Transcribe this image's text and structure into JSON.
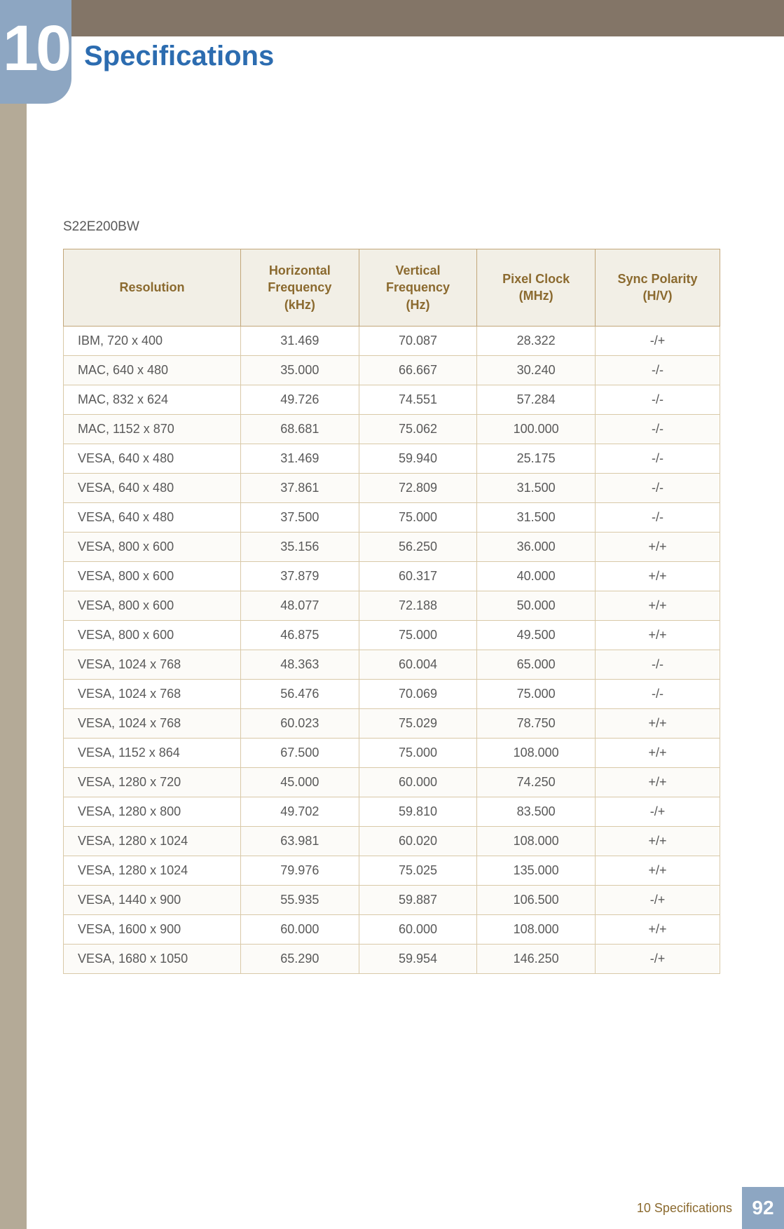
{
  "chapter_number": "10",
  "page_title": "Specifications",
  "model": "S22E200BW",
  "footer_label": "10 Specifications",
  "page_number": "92",
  "colors": {
    "sidebar": "#b4aa97",
    "topbar": "#837567",
    "badge": "#8da6c2",
    "title": "#2c6cb0",
    "header_bg": "#f2efe6",
    "header_text": "#8b6a2f",
    "table_border": "#c2a679",
    "cell_border": "#d9c9a8",
    "body_text": "#595959",
    "footer_page_bg": "#8da6c2"
  },
  "table": {
    "columns": [
      "Resolution",
      "Horizontal Frequency (kHz)",
      "Vertical Frequency (Hz)",
      "Pixel Clock (MHz)",
      "Sync Polarity (H/V)"
    ],
    "column_widths": [
      "27%",
      "18%",
      "18%",
      "18%",
      "19%"
    ],
    "header_html": [
      "Resolution",
      "Horizontal<br>Frequency<br>(kHz)",
      "Vertical<br>Frequency<br>(Hz)",
      "Pixel Clock<br>(MHz)",
      "Sync Polarity<br>(H/V)"
    ],
    "rows": [
      [
        "IBM, 720 x 400",
        "31.469",
        "70.087",
        "28.322",
        "-/+"
      ],
      [
        "MAC, 640 x 480",
        "35.000",
        "66.667",
        "30.240",
        "-/-"
      ],
      [
        "MAC, 832 x 624",
        "49.726",
        "74.551",
        "57.284",
        "-/-"
      ],
      [
        "MAC, 1152 x 870",
        "68.681",
        "75.062",
        "100.000",
        "-/-"
      ],
      [
        "VESA, 640 x 480",
        "31.469",
        "59.940",
        "25.175",
        "-/-"
      ],
      [
        "VESA, 640 x 480",
        "37.861",
        "72.809",
        "31.500",
        "-/-"
      ],
      [
        "VESA, 640 x 480",
        "37.500",
        "75.000",
        "31.500",
        "-/-"
      ],
      [
        "VESA, 800 x 600",
        "35.156",
        "56.250",
        "36.000",
        "+/+"
      ],
      [
        "VESA, 800 x 600",
        "37.879",
        "60.317",
        "40.000",
        "+/+"
      ],
      [
        "VESA, 800 x 600",
        "48.077",
        "72.188",
        "50.000",
        "+/+"
      ],
      [
        "VESA, 800 x 600",
        "46.875",
        "75.000",
        "49.500",
        "+/+"
      ],
      [
        "VESA, 1024 x 768",
        "48.363",
        "60.004",
        "65.000",
        "-/-"
      ],
      [
        "VESA, 1024 x 768",
        "56.476",
        "70.069",
        "75.000",
        "-/-"
      ],
      [
        "VESA, 1024 x 768",
        "60.023",
        "75.029",
        "78.750",
        "+/+"
      ],
      [
        "VESA, 1152 x 864",
        "67.500",
        "75.000",
        "108.000",
        "+/+"
      ],
      [
        "VESA, 1280 x 720",
        "45.000",
        "60.000",
        "74.250",
        "+/+"
      ],
      [
        "VESA, 1280 x 800",
        "49.702",
        "59.810",
        "83.500",
        "-/+"
      ],
      [
        "VESA, 1280 x 1024",
        "63.981",
        "60.020",
        "108.000",
        "+/+"
      ],
      [
        "VESA, 1280 x 1024",
        "79.976",
        "75.025",
        "135.000",
        "+/+"
      ],
      [
        "VESA, 1440 x 900",
        "55.935",
        "59.887",
        "106.500",
        "-/+"
      ],
      [
        "VESA, 1600 x 900",
        "60.000",
        "60.000",
        "108.000",
        "+/+"
      ],
      [
        "VESA, 1680 x 1050",
        "65.290",
        "59.954",
        "146.250",
        "-/+"
      ]
    ]
  }
}
